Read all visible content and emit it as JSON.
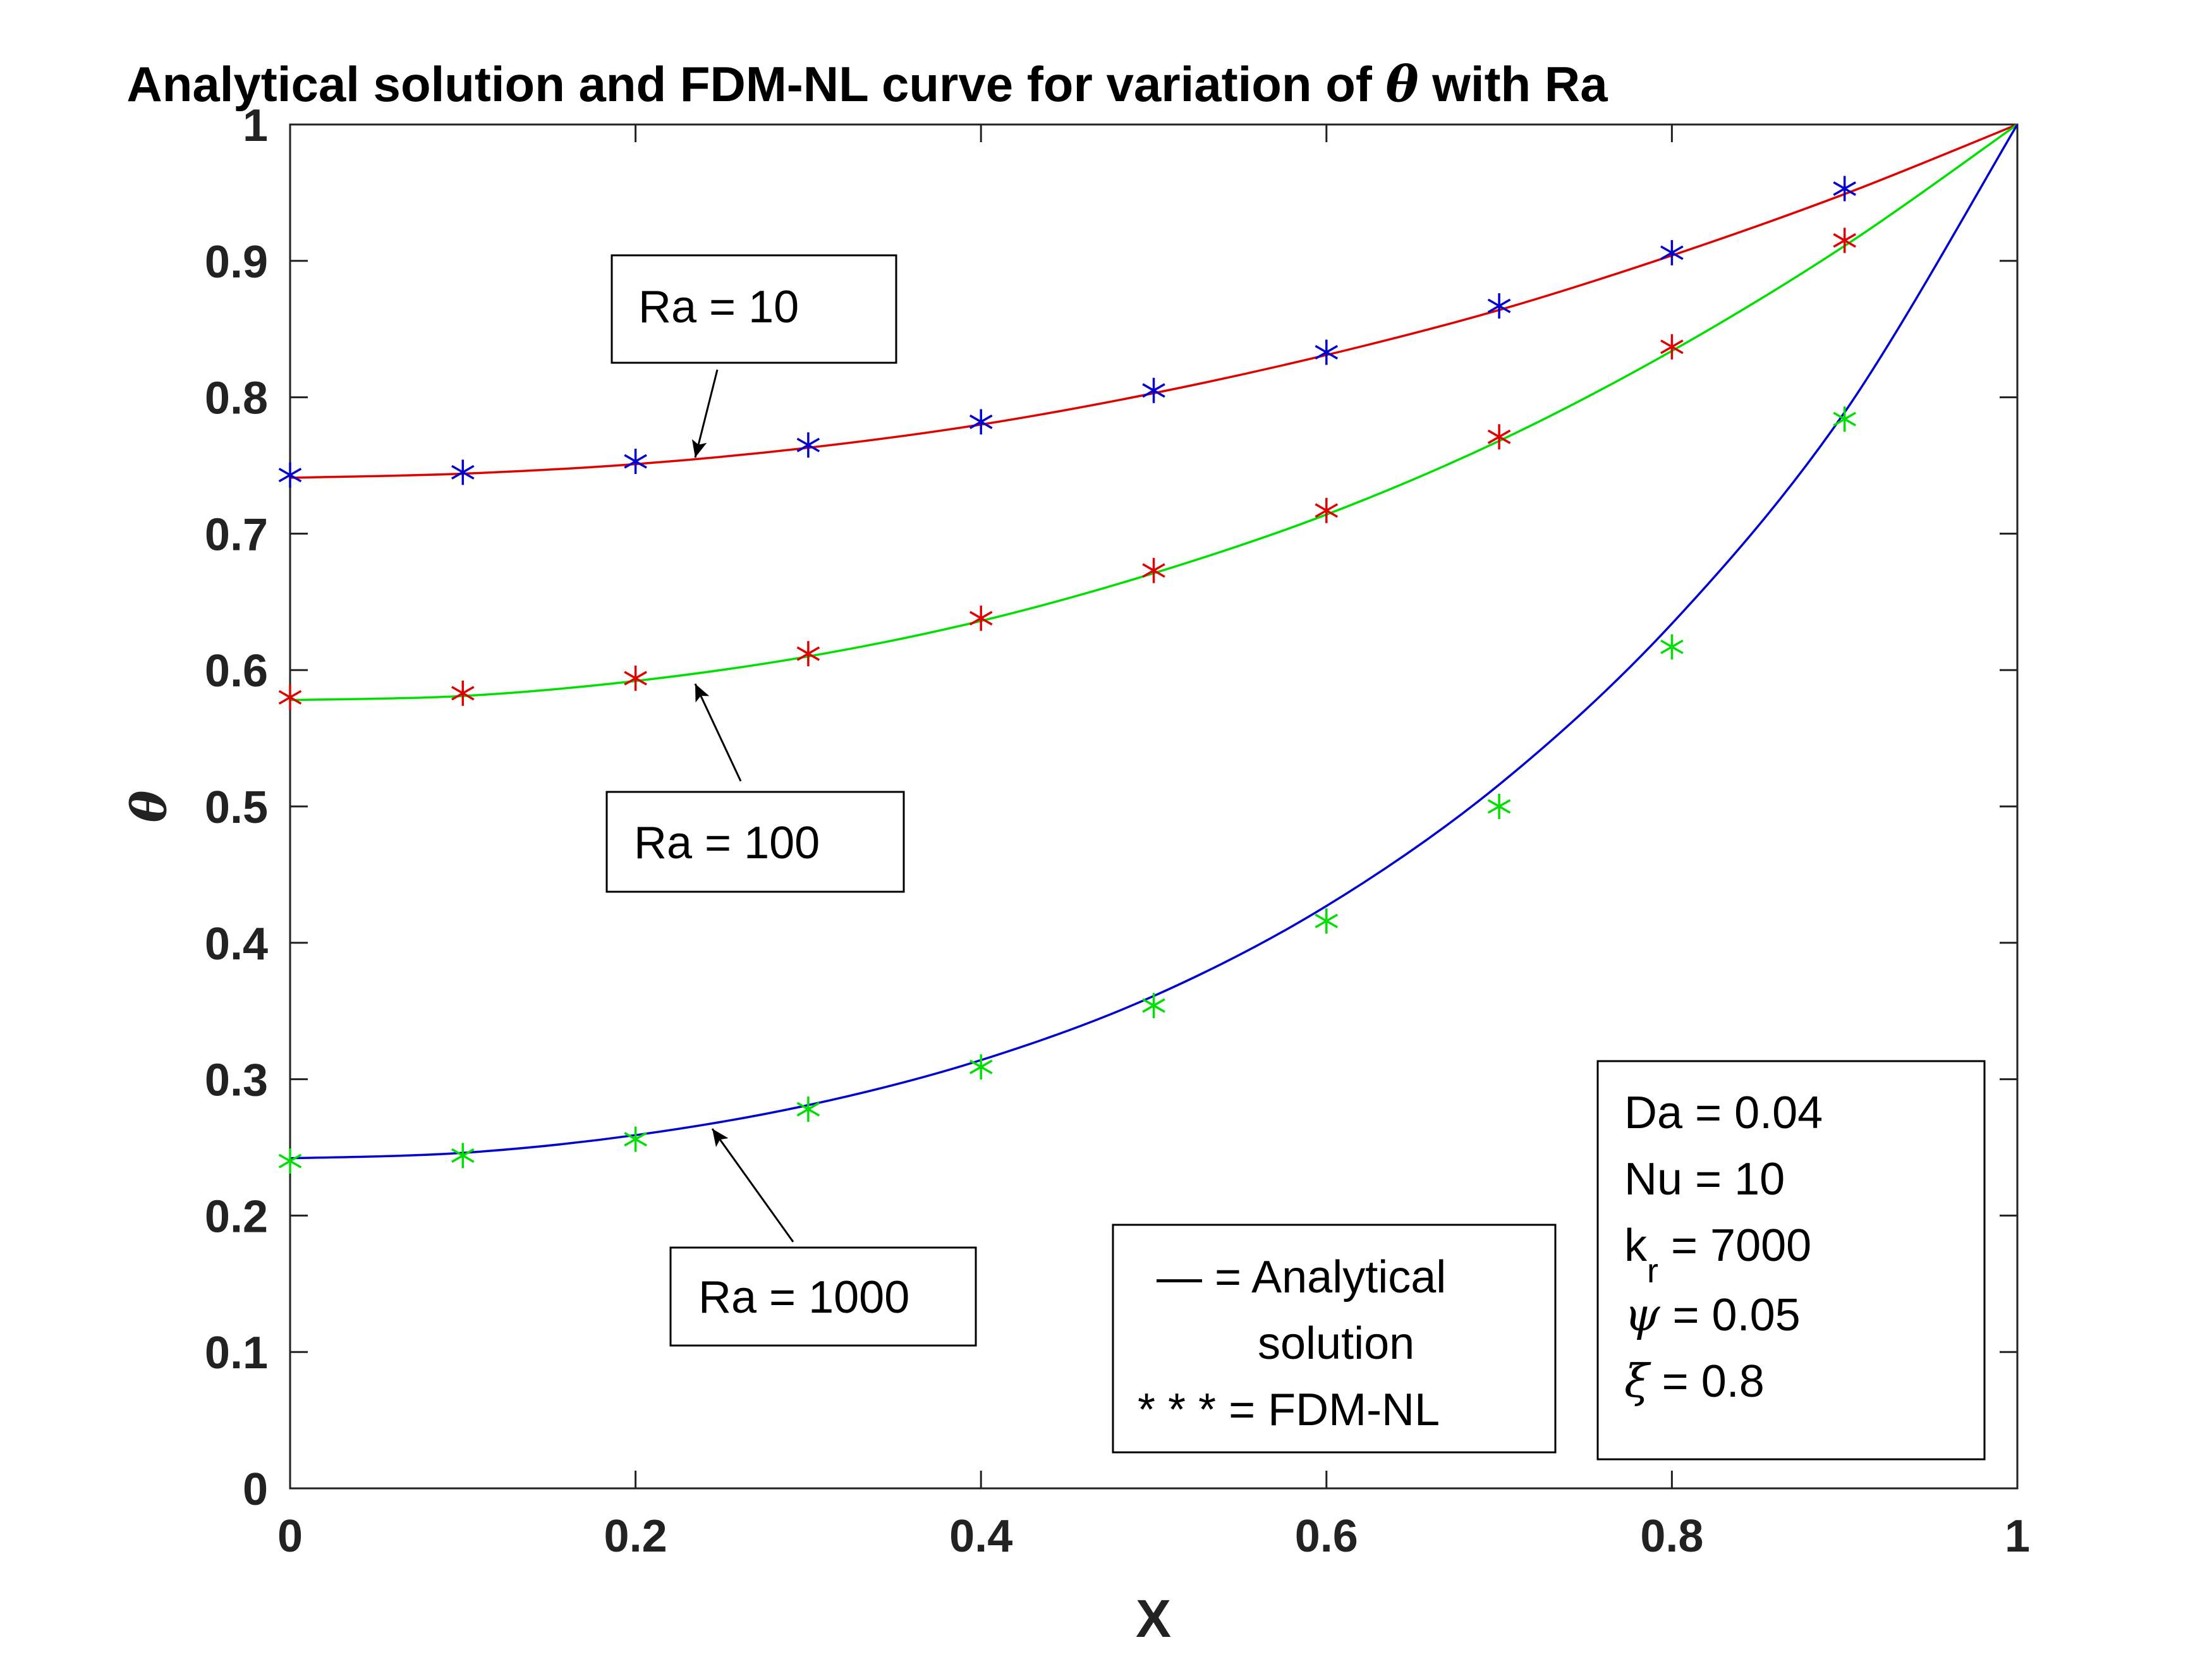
{
  "chart_data": {
    "type": "line",
    "title": "Analytical solution and FDM-NL curve for variation of θ with Ra",
    "title_parts": {
      "prefix": "Analytical solution and FDM-NL curve for variation of ",
      "symbol": "θ",
      "suffix": " with Ra"
    },
    "xlabel": "X",
    "ylabel": "θ",
    "xlim": [
      0,
      1
    ],
    "ylim": [
      0,
      1
    ],
    "xticks": [
      0,
      0.2,
      0.4,
      0.6,
      0.8,
      1
    ],
    "xtick_labels": [
      "0",
      "0.2",
      "0.4",
      "0.6",
      "0.8",
      "1"
    ],
    "yticks": [
      0,
      0.1,
      0.2,
      0.3,
      0.4,
      0.5,
      0.6,
      0.7,
      0.8,
      0.9,
      1
    ],
    "ytick_labels": [
      "0",
      "0.1",
      "0.2",
      "0.3",
      "0.4",
      "0.5",
      "0.6",
      "0.7",
      "0.8",
      "0.9",
      "1"
    ],
    "grid": false,
    "analytical_series": [
      {
        "curve": "Ra = 10",
        "color": "#e00000",
        "x": [
          0,
          0.1,
          0.2,
          0.3,
          0.4,
          0.5,
          0.6,
          0.7,
          0.8,
          0.9,
          1.0
        ],
        "y": [
          0.741,
          0.744,
          0.751,
          0.763,
          0.78,
          0.803,
          0.831,
          0.864,
          0.904,
          0.949,
          1.0
        ]
      },
      {
        "curve": "Ra = 100",
        "color": "#00e000",
        "x": [
          0,
          0.1,
          0.2,
          0.3,
          0.4,
          0.5,
          0.6,
          0.7,
          0.8,
          0.9,
          1.0
        ],
        "y": [
          0.578,
          0.581,
          0.592,
          0.61,
          0.636,
          0.671,
          0.714,
          0.768,
          0.834,
          0.911,
          1.0
        ]
      },
      {
        "curve": "Ra = 1000",
        "color": "#0000d0",
        "x": [
          0,
          0.1,
          0.2,
          0.3,
          0.4,
          0.5,
          0.6,
          0.7,
          0.8,
          0.9,
          1.0
        ],
        "y": [
          0.242,
          0.246,
          0.259,
          0.281,
          0.314,
          0.361,
          0.427,
          0.516,
          0.634,
          0.789,
          1.0
        ]
      }
    ],
    "fdm_series": [
      {
        "curve": "Ra = 10",
        "color": "#0000d0",
        "x": [
          0,
          0.1,
          0.2,
          0.3,
          0.4,
          0.5,
          0.6,
          0.7,
          0.8,
          0.9
        ],
        "y": [
          0.743,
          0.745,
          0.753,
          0.765,
          0.782,
          0.805,
          0.833,
          0.867,
          0.906,
          0.953
        ]
      },
      {
        "curve": "Ra = 100",
        "color": "#e00000",
        "x": [
          0,
          0.1,
          0.2,
          0.3,
          0.4,
          0.5,
          0.6,
          0.7,
          0.8,
          0.9
        ],
        "y": [
          0.58,
          0.583,
          0.594,
          0.612,
          0.638,
          0.673,
          0.717,
          0.771,
          0.837,
          0.915
        ]
      },
      {
        "curve": "Ra = 1000",
        "color": "#00e000",
        "x": [
          0,
          0.1,
          0.2,
          0.3,
          0.4,
          0.5,
          0.6,
          0.7,
          0.8,
          0.9
        ],
        "y": [
          0.24,
          0.244,
          0.256,
          0.278,
          0.309,
          0.354,
          0.416,
          0.5,
          0.617,
          0.784
        ]
      }
    ],
    "annotations": [
      {
        "text": "Ra = 10",
        "arrow_target": [
          0.235,
          0.751
        ]
      },
      {
        "text": "Ra = 100",
        "arrow_target": [
          0.235,
          0.597
        ]
      },
      {
        "text": "Ra = 1000",
        "arrow_target": [
          0.245,
          0.265
        ]
      }
    ],
    "legend_box": {
      "line1": "— = Analytical",
      "line2": "solution",
      "line3": "* * * = FDM-NL"
    },
    "params_box": {
      "da": "Da = 0.04",
      "nu": "Nu = 10",
      "kr_base": "k",
      "kr_sub": "r",
      "kr_value": " = 7000",
      "psi_symbol": "ψ",
      "psi_value": " = 0.05",
      "xi_symbol": "ξ",
      "xi_value": " = 0.8"
    }
  }
}
